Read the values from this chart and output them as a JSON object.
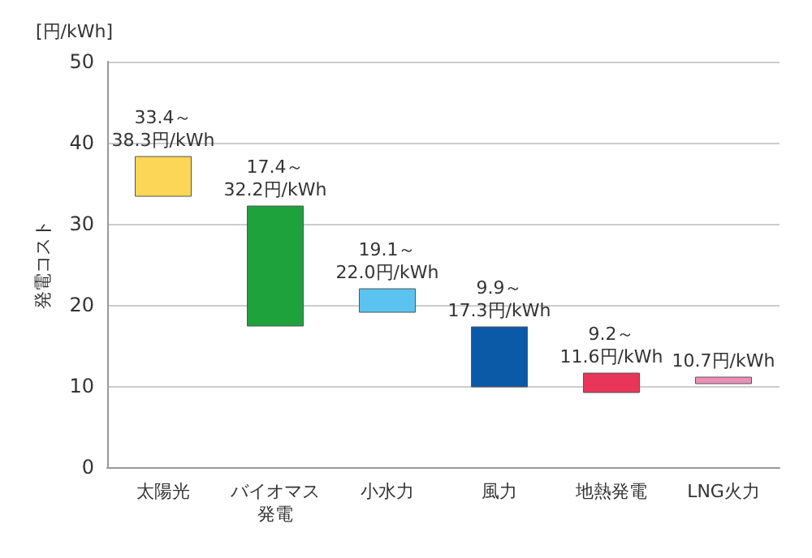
{
  "chart_data": {
    "type": "bar",
    "ylabel": "発電コスト",
    "annotations": [
      "[円/kWh]",
      {
        "text": "33.4～\n38.3円/kWh",
        "x": "太陽光",
        "y": 38.3
      },
      {
        "text": "17.4～\n32.2円/kWh",
        "x": "バイオマス発電",
        "y": 32.2
      },
      {
        "text": "19.1～\n22.0円/kWh",
        "x": "小水力",
        "y": 22.0
      },
      {
        "text": "9.9～\n17.3円/kWh",
        "x": "風力",
        "y": 17.3
      },
      {
        "text": "9.2～\n11.6円/kWh",
        "x": "地熱発電",
        "y": 11.6
      },
      {
        "text": "10.7円/kWh",
        "x": "LNG火力",
        "y": 11.1
      }
    ],
    "categories": [
      "太陽光",
      "バイオマス発電",
      "小水力",
      "風力",
      "地熱発電",
      "LNG火力"
    ],
    "base": [
      33.4,
      17.4,
      19.1,
      9.9,
      9.2,
      10.3
    ],
    "values": [
      4.9,
      14.8,
      2.9,
      7.4,
      2.4,
      0.8
    ],
    "colors": [
      "#fcd757",
      "#1ea23c",
      "#5bc3ef",
      "#0a5aa8",
      "#e8365a",
      "#ec8fb8"
    ],
    "ylim": [
      0,
      50
    ],
    "yticks": [
      0,
      10,
      20,
      30,
      40,
      50
    ],
    "grid": "y"
  }
}
